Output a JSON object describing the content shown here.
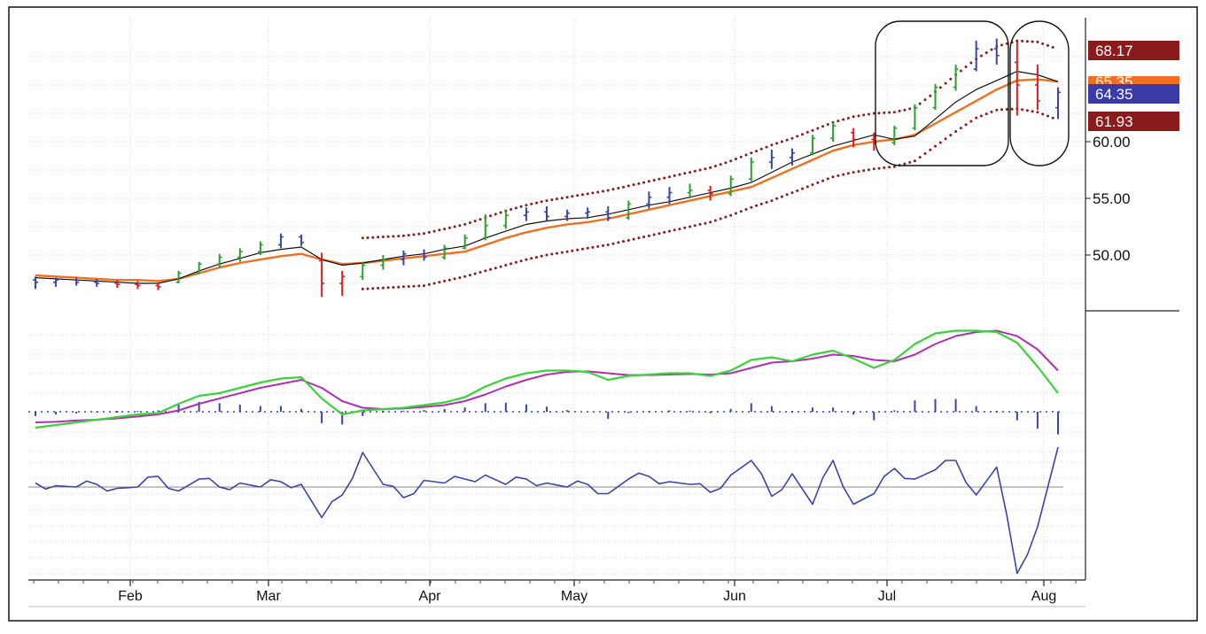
{
  "colors": {
    "background": "#ffffff",
    "grid": "#d9d9d9",
    "up_bar": "#2ca02c",
    "neutral_bar": "#3b44a8",
    "down_bar": "#d62020",
    "ema_fast": "#111111",
    "ema_slow": "#f07020",
    "envelope": "#8a1c1c",
    "macd_line": "#3bd23b",
    "signal_line": "#b030b0",
    "histogram": "#3b44a8",
    "momentum": "#3b44a8",
    "badge_upper": "#8b1a1a",
    "badge_price": "#3a3aa8",
    "badge_ema": "#f07020"
  },
  "chart_data": [
    {
      "type": "line",
      "panel": "price",
      "y_ticks": [
        "50.00",
        "55.00",
        "60.00"
      ],
      "ylim": [
        44.5,
        70
      ],
      "x_ticks": [
        "Feb",
        "Mar",
        "Apr",
        "May",
        "Jun",
        "Jul",
        "Aug"
      ],
      "price_badges": [
        {
          "label": "68.17",
          "kind": "upper"
        },
        {
          "label": "65.35",
          "kind": "ema"
        },
        {
          "label": "64.35",
          "kind": "price"
        },
        {
          "label": "61.93",
          "kind": "lower"
        }
      ],
      "annotations": [
        "circled rally region (Jul)",
        "circled reversal region (Aug)"
      ],
      "ema_slow": [
        48.2,
        48.1,
        48.0,
        47.9,
        47.8,
        47.8,
        47.7,
        47.9,
        48.4,
        48.9,
        49.3,
        49.6,
        49.9,
        50.1,
        49.6,
        49.2,
        49.3,
        49.5,
        49.7,
        49.9,
        50.1,
        50.3,
        50.9,
        51.5,
        52.0,
        52.4,
        52.7,
        52.9,
        53.2,
        53.6,
        54.0,
        54.4,
        54.8,
        55.2,
        55.6,
        56.0,
        56.8,
        57.6,
        58.4,
        59.2,
        59.7,
        60.0,
        60.2,
        60.6,
        61.6,
        62.6,
        63.6,
        64.6,
        65.4,
        65.5,
        65.3
      ],
      "ema_fast": [
        48.0,
        47.9,
        47.8,
        47.7,
        47.6,
        47.5,
        47.5,
        47.9,
        48.6,
        49.2,
        49.7,
        50.2,
        50.5,
        50.7,
        49.6,
        49.1,
        49.3,
        49.6,
        49.9,
        50.1,
        50.5,
        50.8,
        51.5,
        52.1,
        52.7,
        53.0,
        53.2,
        53.3,
        53.6,
        54.0,
        54.4,
        54.7,
        55.1,
        55.5,
        55.9,
        56.4,
        57.3,
        58.2,
        58.9,
        59.6,
        60.1,
        60.6,
        60.2,
        60.5,
        62.0,
        63.5,
        64.6,
        65.4,
        66.2,
        65.9,
        65.3
      ],
      "envelope_upper": [
        null,
        null,
        null,
        null,
        null,
        null,
        null,
        null,
        null,
        null,
        null,
        null,
        null,
        null,
        null,
        null,
        51.5,
        51.6,
        51.7,
        51.9,
        52.3,
        52.7,
        53.3,
        53.9,
        54.4,
        54.8,
        55.1,
        55.4,
        55.7,
        56.1,
        56.5,
        56.9,
        57.3,
        57.7,
        58.3,
        59.0,
        59.7,
        60.3,
        61.0,
        61.7,
        62.2,
        62.5,
        62.6,
        63.0,
        64.4,
        65.9,
        67.3,
        68.4,
        68.9,
        68.8,
        68.17
      ],
      "envelope_lower": [
        null,
        null,
        null,
        null,
        null,
        null,
        null,
        null,
        null,
        null,
        null,
        null,
        null,
        null,
        null,
        null,
        47.0,
        47.1,
        47.2,
        47.3,
        47.7,
        48.1,
        48.6,
        49.1,
        49.6,
        50.0,
        50.3,
        50.6,
        50.9,
        51.3,
        51.7,
        52.1,
        52.5,
        52.9,
        53.5,
        54.2,
        54.8,
        55.5,
        56.2,
        56.9,
        57.3,
        57.6,
        57.8,
        58.3,
        59.6,
        60.9,
        62.1,
        62.8,
        62.9,
        62.6,
        61.93
      ],
      "bars": [
        {
          "o": 47.8,
          "h": 48.1,
          "l": 47.0,
          "c": 47.6,
          "t": "n"
        },
        {
          "o": 47.6,
          "h": 48.0,
          "l": 47.2,
          "c": 47.8,
          "t": "n"
        },
        {
          "o": 47.8,
          "h": 48.0,
          "l": 47.3,
          "c": 47.6,
          "t": "n"
        },
        {
          "o": 47.6,
          "h": 47.9,
          "l": 47.2,
          "c": 47.5,
          "t": "n"
        },
        {
          "o": 47.5,
          "h": 47.8,
          "l": 47.1,
          "c": 47.4,
          "t": "d"
        },
        {
          "o": 47.4,
          "h": 47.7,
          "l": 47.0,
          "c": 47.3,
          "t": "d"
        },
        {
          "o": 47.3,
          "h": 47.6,
          "l": 46.9,
          "c": 47.2,
          "t": "d"
        },
        {
          "o": 47.6,
          "h": 48.6,
          "l": 47.5,
          "c": 48.4,
          "t": "u"
        },
        {
          "o": 48.4,
          "h": 49.4,
          "l": 48.3,
          "c": 49.2,
          "t": "u"
        },
        {
          "o": 49.2,
          "h": 50.1,
          "l": 48.9,
          "c": 49.8,
          "t": "u"
        },
        {
          "o": 49.8,
          "h": 50.6,
          "l": 49.4,
          "c": 50.3,
          "t": "u"
        },
        {
          "o": 50.3,
          "h": 51.2,
          "l": 50.0,
          "c": 50.9,
          "t": "u"
        },
        {
          "o": 50.9,
          "h": 51.9,
          "l": 50.6,
          "c": 51.6,
          "t": "n"
        },
        {
          "o": 51.6,
          "h": 51.8,
          "l": 50.8,
          "c": 51.1,
          "t": "n"
        },
        {
          "o": 49.5,
          "h": 50.2,
          "l": 46.3,
          "c": 47.5,
          "t": "d"
        },
        {
          "o": 47.5,
          "h": 48.6,
          "l": 46.4,
          "c": 48.1,
          "t": "d"
        },
        {
          "o": 48.1,
          "h": 49.4,
          "l": 47.8,
          "c": 49.1,
          "t": "u"
        },
        {
          "o": 49.1,
          "h": 50.0,
          "l": 48.7,
          "c": 49.6,
          "t": "u"
        },
        {
          "o": 49.6,
          "h": 50.4,
          "l": 49.1,
          "c": 50.1,
          "t": "n"
        },
        {
          "o": 50.1,
          "h": 50.5,
          "l": 49.5,
          "c": 49.8,
          "t": "n"
        },
        {
          "o": 49.8,
          "h": 50.9,
          "l": 49.6,
          "c": 50.6,
          "t": "u"
        },
        {
          "o": 50.6,
          "h": 51.8,
          "l": 50.5,
          "c": 51.5,
          "t": "u"
        },
        {
          "o": 51.5,
          "h": 53.6,
          "l": 51.3,
          "c": 52.6,
          "t": "u"
        },
        {
          "o": 52.6,
          "h": 53.9,
          "l": 52.3,
          "c": 53.5,
          "t": "u"
        },
        {
          "o": 53.5,
          "h": 54.2,
          "l": 53.0,
          "c": 53.8,
          "t": "n"
        },
        {
          "o": 53.8,
          "h": 54.3,
          "l": 53.0,
          "c": 53.4,
          "t": "n"
        },
        {
          "o": 53.4,
          "h": 54.0,
          "l": 53.0,
          "c": 53.7,
          "t": "n"
        },
        {
          "o": 53.7,
          "h": 54.2,
          "l": 53.2,
          "c": 53.8,
          "t": "n"
        },
        {
          "o": 53.8,
          "h": 54.3,
          "l": 53.0,
          "c": 53.3,
          "t": "n"
        },
        {
          "o": 53.3,
          "h": 54.8,
          "l": 53.1,
          "c": 54.5,
          "t": "u"
        },
        {
          "o": 54.5,
          "h": 55.6,
          "l": 54.1,
          "c": 55.1,
          "t": "n"
        },
        {
          "o": 55.1,
          "h": 56.0,
          "l": 54.5,
          "c": 55.5,
          "t": "n"
        },
        {
          "o": 55.5,
          "h": 56.3,
          "l": 55.0,
          "c": 55.7,
          "t": "u"
        },
        {
          "o": 55.7,
          "h": 56.1,
          "l": 54.8,
          "c": 55.4,
          "t": "d"
        },
        {
          "o": 55.4,
          "h": 57.0,
          "l": 55.2,
          "c": 56.7,
          "t": "u"
        },
        {
          "o": 56.7,
          "h": 58.6,
          "l": 56.5,
          "c": 58.2,
          "t": "u"
        },
        {
          "o": 58.2,
          "h": 59.3,
          "l": 57.6,
          "c": 58.6,
          "t": "n"
        },
        {
          "o": 58.6,
          "h": 59.4,
          "l": 57.9,
          "c": 59.0,
          "t": "n"
        },
        {
          "o": 59.0,
          "h": 60.6,
          "l": 58.8,
          "c": 60.3,
          "t": "u"
        },
        {
          "o": 60.3,
          "h": 61.7,
          "l": 60.0,
          "c": 61.4,
          "t": "u"
        },
        {
          "o": 60.8,
          "h": 61.2,
          "l": 59.5,
          "c": 60.2,
          "t": "d"
        },
        {
          "o": 60.2,
          "h": 60.8,
          "l": 59.2,
          "c": 59.9,
          "t": "d"
        },
        {
          "o": 59.9,
          "h": 61.4,
          "l": 59.7,
          "c": 61.2,
          "t": "u"
        },
        {
          "o": 61.2,
          "h": 63.3,
          "l": 61.0,
          "c": 63.0,
          "t": "u"
        },
        {
          "o": 63.0,
          "h": 65.1,
          "l": 62.8,
          "c": 64.8,
          "t": "u"
        },
        {
          "o": 64.8,
          "h": 66.8,
          "l": 64.5,
          "c": 66.4,
          "t": "u"
        },
        {
          "o": 66.4,
          "h": 68.9,
          "l": 66.2,
          "c": 68.2,
          "t": "n"
        },
        {
          "o": 68.2,
          "h": 69.1,
          "l": 66.8,
          "c": 67.6,
          "t": "n"
        },
        {
          "o": 67.0,
          "h": 68.8,
          "l": 62.3,
          "c": 65.0,
          "t": "d"
        },
        {
          "o": 65.0,
          "h": 66.8,
          "l": 62.8,
          "c": 63.6,
          "t": "d"
        },
        {
          "o": 63.0,
          "h": 64.8,
          "l": 62.0,
          "c": 64.35,
          "t": "n"
        }
      ]
    },
    {
      "type": "line",
      "panel": "macd",
      "series_macd": [
        -0.6,
        -0.5,
        -0.4,
        -0.3,
        -0.2,
        -0.1,
        -0.05,
        0.3,
        0.6,
        0.7,
        0.9,
        1.1,
        1.25,
        1.3,
        0.5,
        -0.1,
        0.05,
        0.1,
        0.15,
        0.25,
        0.35,
        0.55,
        0.95,
        1.25,
        1.45,
        1.55,
        1.55,
        1.5,
        1.2,
        1.35,
        1.4,
        1.45,
        1.45,
        1.35,
        1.55,
        1.95,
        2.05,
        1.9,
        2.15,
        2.3,
        2.0,
        1.65,
        1.95,
        2.55,
        2.95,
        3.05,
        3.05,
        3.0,
        2.6,
        1.7,
        0.7
      ],
      "series_signal": [
        -0.4,
        -0.38,
        -0.33,
        -0.3,
        -0.25,
        -0.18,
        -0.1,
        0.05,
        0.3,
        0.5,
        0.7,
        0.9,
        1.05,
        1.2,
        0.9,
        0.4,
        0.15,
        0.1,
        0.12,
        0.18,
        0.25,
        0.4,
        0.65,
        0.95,
        1.2,
        1.4,
        1.5,
        1.52,
        1.45,
        1.38,
        1.38,
        1.4,
        1.42,
        1.4,
        1.45,
        1.65,
        1.85,
        1.9,
        2.0,
        2.15,
        2.1,
        1.95,
        1.9,
        2.15,
        2.55,
        2.85,
        3.0,
        3.05,
        2.85,
        2.35,
        1.55
      ],
      "histogram": [
        -0.15,
        -0.1,
        -0.06,
        -0.03,
        0,
        0.03,
        0.05,
        0.25,
        0.35,
        0.3,
        0.25,
        0.2,
        0.2,
        0.1,
        -0.4,
        -0.45,
        -0.15,
        0,
        0.03,
        0.06,
        0.1,
        0.15,
        0.3,
        0.32,
        0.26,
        0.18,
        0.06,
        -0.02,
        -0.25,
        -0.05,
        0.03,
        0.05,
        0.04,
        -0.05,
        0.1,
        0.3,
        0.2,
        0,
        0.15,
        0.15,
        -0.1,
        -0.3,
        0.05,
        0.4,
        0.45,
        0.45,
        0.2,
        0,
        -0.3,
        -0.6,
        -0.8
      ]
    },
    {
      "type": "line",
      "panel": "momentum",
      "values": [
        0.3,
        0.1,
        0.0,
        0.2,
        -0.1,
        0.0,
        0.8,
        -0.3,
        0.6,
        0.0,
        0.3,
        0.0,
        0.4,
        0.2,
        -2.3,
        -0.6,
        2.6,
        0.2,
        -0.8,
        0.5,
        0.3,
        0.6,
        0.9,
        0.2,
        0.6,
        0.3,
        0.0,
        0.2,
        -0.5,
        0.6,
        0.8,
        0.4,
        0.2,
        -0.4,
        0.9,
        2.0,
        -0.7,
        1.0,
        -1.3,
        2.0,
        -1.3,
        -0.5,
        1.4,
        0.6,
        1.3,
        2.0,
        -0.6,
        1.5,
        -6.5,
        -3.0,
        3.0
      ]
    }
  ]
}
